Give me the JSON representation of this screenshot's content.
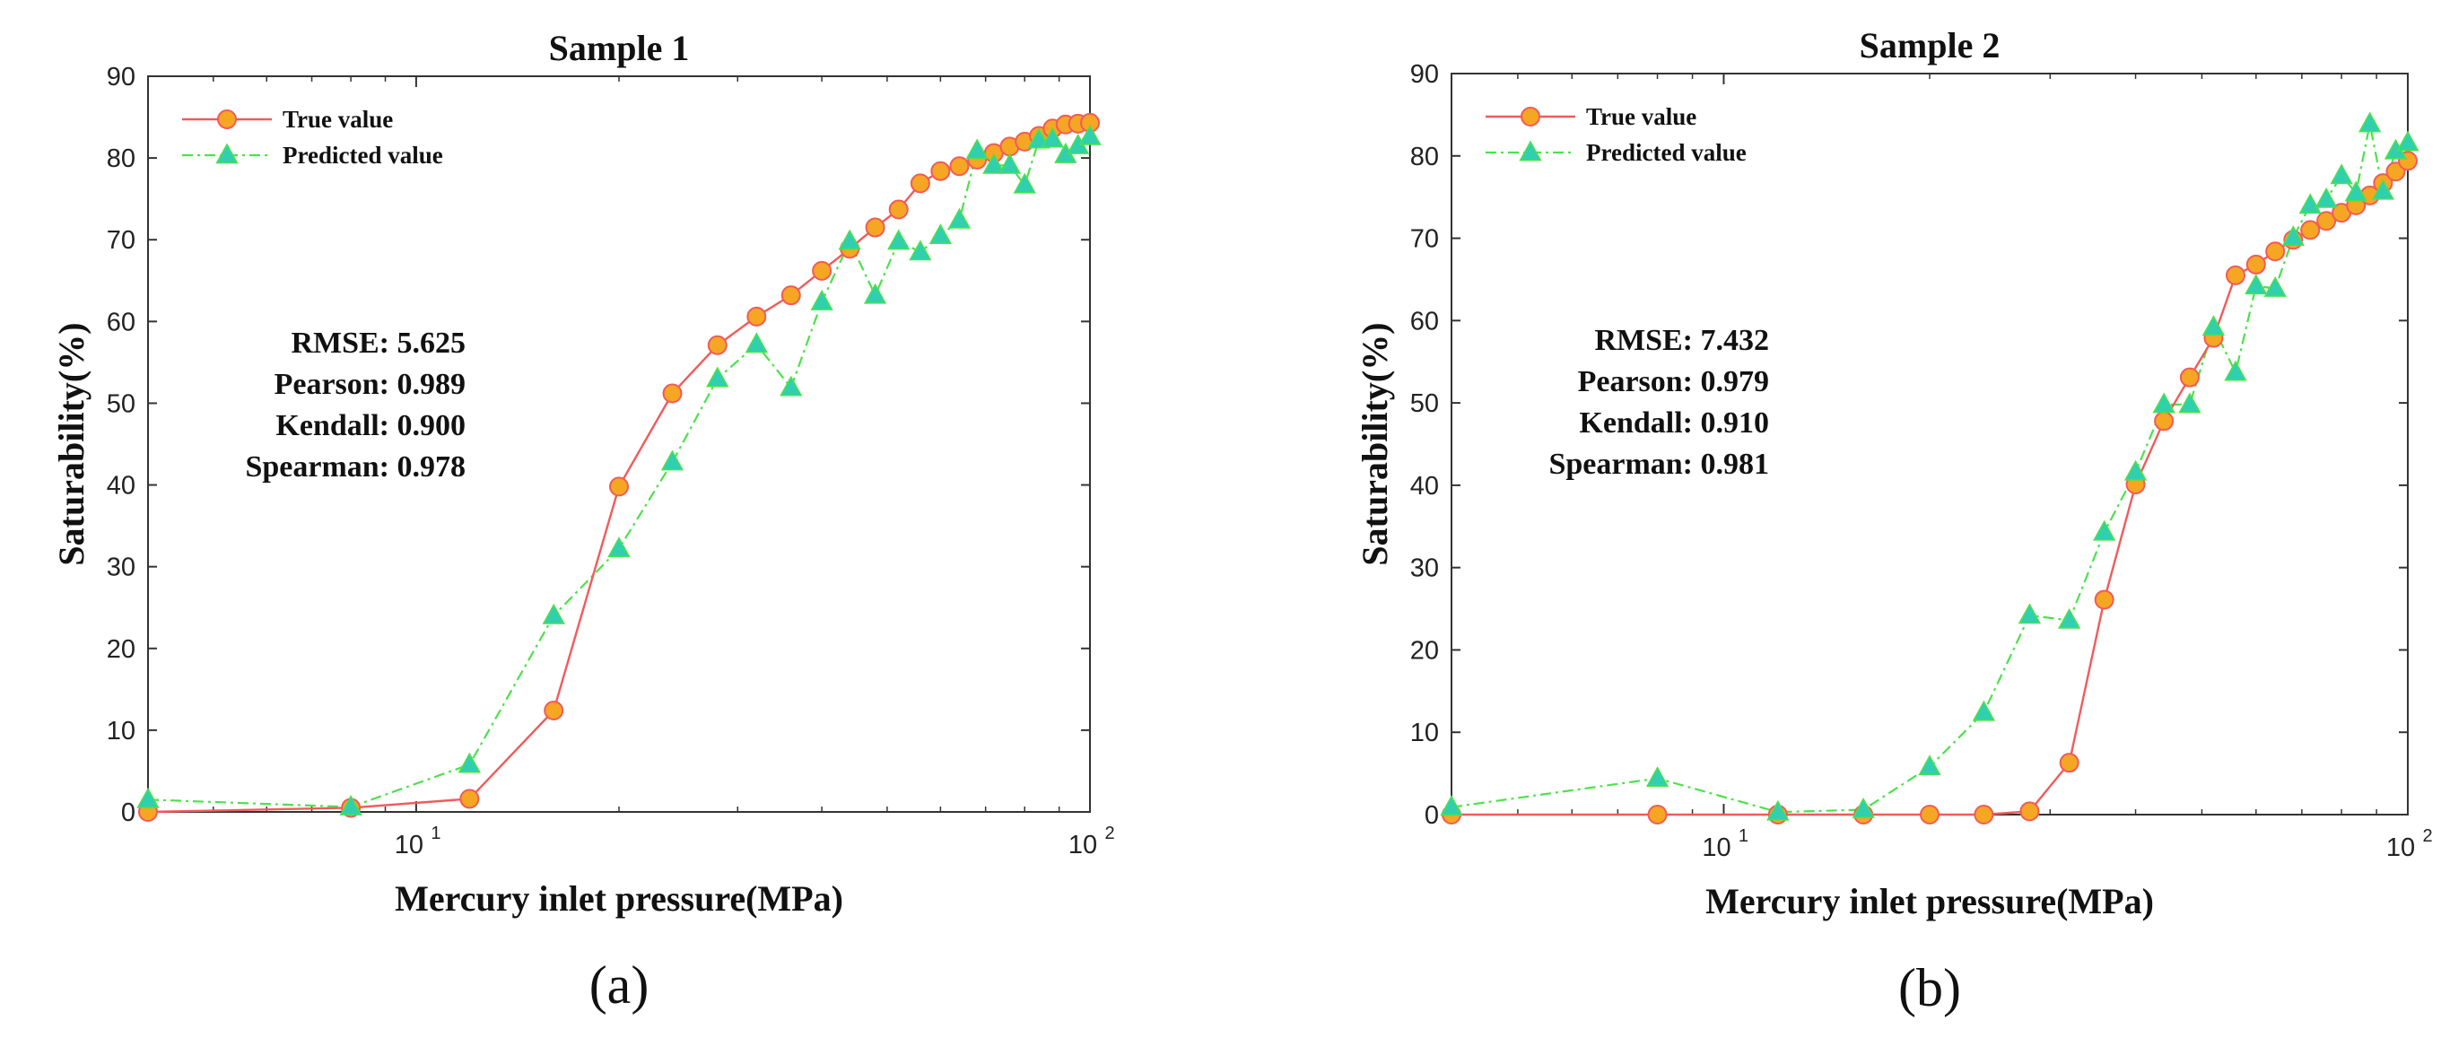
{
  "chart_data": [
    {
      "type": "line",
      "panel_label": "(a)",
      "title": "Sample 1",
      "xlabel": "Mercury inlet pressure(MPa)",
      "ylabel": "Saturability(%)",
      "xscale": "log",
      "xlim": [
        4,
        100
      ],
      "ylim": [
        0,
        90
      ],
      "yticks": [
        "0",
        "10",
        "20",
        "30",
        "40",
        "50",
        "60",
        "70",
        "80",
        "90"
      ],
      "xticks": [
        {
          "base": "10",
          "exp": "1",
          "value": 10
        },
        {
          "base": "10",
          "exp": "2",
          "value": 100
        }
      ],
      "legend_position": "top-left",
      "colors": {
        "true_line": "#f25a5a",
        "true_marker": "#f5a623",
        "pred_line": "#4be24b",
        "pred_marker": "#2fcfb0"
      },
      "stats": [
        "RMSE: 5.625",
        "Pearson: 0.989",
        "Kendall: 0.900",
        "Spearman: 0.978"
      ],
      "series": [
        {
          "name": "True value",
          "x": [
            4,
            8,
            12,
            16,
            20,
            24,
            28,
            32,
            36,
            40,
            44,
            48,
            52,
            56,
            60,
            64,
            68,
            72,
            76,
            80,
            84,
            88,
            92,
            96,
            100
          ],
          "y": [
            0,
            0.5,
            1.6,
            12.4,
            39.8,
            51.2,
            57.1,
            60.6,
            63.2,
            66.2,
            68.9,
            71.5,
            73.7,
            76.9,
            78.4,
            79.0,
            79.8,
            80.6,
            81.4,
            82.0,
            82.7,
            83.6,
            84.1,
            84.2,
            84.3
          ]
        },
        {
          "name": "Predicted value",
          "x": [
            4,
            8,
            12,
            16,
            20,
            24,
            28,
            32,
            36,
            40,
            44,
            48,
            52,
            56,
            60,
            64,
            68,
            72,
            76,
            80,
            84,
            88,
            92,
            96,
            100
          ],
          "y": [
            1.5,
            0.6,
            5.8,
            24.0,
            32.2,
            42.8,
            53.0,
            57.2,
            51.9,
            62.4,
            69.8,
            63.2,
            69.8,
            68.5,
            70.5,
            72.4,
            80.9,
            79.1,
            79.1,
            76.7,
            82.2,
            82.3,
            80.4,
            81.5,
            82.6
          ]
        }
      ]
    },
    {
      "type": "line",
      "panel_label": "(b)",
      "title": "Sample 2",
      "xlabel": "Mercury inlet pressure(MPa)",
      "ylabel": "Saturability(%)",
      "xscale": "log",
      "xlim": [
        4,
        100
      ],
      "ylim": [
        0,
        90
      ],
      "yticks": [
        "0",
        "10",
        "20",
        "30",
        "40",
        "50",
        "60",
        "70",
        "80",
        "90"
      ],
      "xticks": [
        {
          "base": "10",
          "exp": "1",
          "value": 10
        },
        {
          "base": "10",
          "exp": "2",
          "value": 100
        }
      ],
      "legend_position": "top-left",
      "colors": {
        "true_line": "#f25a5a",
        "true_marker": "#f5a623",
        "pred_line": "#4be24b",
        "pred_marker": "#2fcfb0"
      },
      "stats": [
        "RMSE: 7.432",
        "Pearson: 0.979",
        "Kendall: 0.910",
        "Spearman: 0.981"
      ],
      "series": [
        {
          "name": "True value",
          "x": [
            4,
            8,
            12,
            16,
            20,
            24,
            28,
            32,
            36,
            40,
            44,
            48,
            52,
            56,
            60,
            64,
            68,
            72,
            76,
            80,
            84,
            88,
            92,
            96,
            100
          ],
          "y": [
            0,
            0,
            0,
            0,
            0,
            0,
            0.4,
            6.3,
            26.1,
            40.1,
            47.8,
            53.1,
            57.9,
            65.5,
            66.8,
            68.4,
            69.8,
            71.0,
            72.1,
            73.1,
            74.0,
            75.2,
            76.7,
            78.1,
            79.4
          ]
        },
        {
          "name": "Predicted value",
          "x": [
            4,
            8,
            12,
            16,
            20,
            24,
            28,
            32,
            36,
            40,
            44,
            48,
            52,
            56,
            60,
            64,
            68,
            72,
            76,
            80,
            84,
            88,
            92,
            96,
            100
          ],
          "y": [
            0.9,
            4.4,
            0.3,
            0.6,
            5.8,
            12.4,
            24.2,
            23.6,
            34.3,
            41.6,
            49.8,
            49.8,
            59.2,
            53.7,
            64.2,
            63.9,
            70.1,
            74.0,
            74.7,
            77.6,
            75.5,
            83.9,
            75.7,
            80.6,
            81.6
          ]
        }
      ]
    }
  ]
}
